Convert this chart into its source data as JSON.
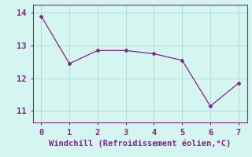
{
  "x": [
    0,
    1,
    2,
    3,
    4,
    5,
    6,
    7
  ],
  "y": [
    13.9,
    12.45,
    12.85,
    12.85,
    12.75,
    12.55,
    11.15,
    11.85
  ],
  "line_color": "#882288",
  "marker": "D",
  "marker_size": 2.5,
  "background_color": "#d4f5f0",
  "grid_color": "#b0ddd8",
  "xlabel": "Windchill (Refroidissement éolien,°C)",
  "xlabel_color": "#882288",
  "xlabel_fontsize": 7.5,
  "tick_color": "#882288",
  "tick_fontsize": 7.5,
  "ylim": [
    10.65,
    14.25
  ],
  "xlim": [
    -0.3,
    7.3
  ],
  "yticks": [
    11,
    12,
    13,
    14
  ],
  "xticks": [
    0,
    1,
    2,
    3,
    4,
    5,
    6,
    7
  ]
}
